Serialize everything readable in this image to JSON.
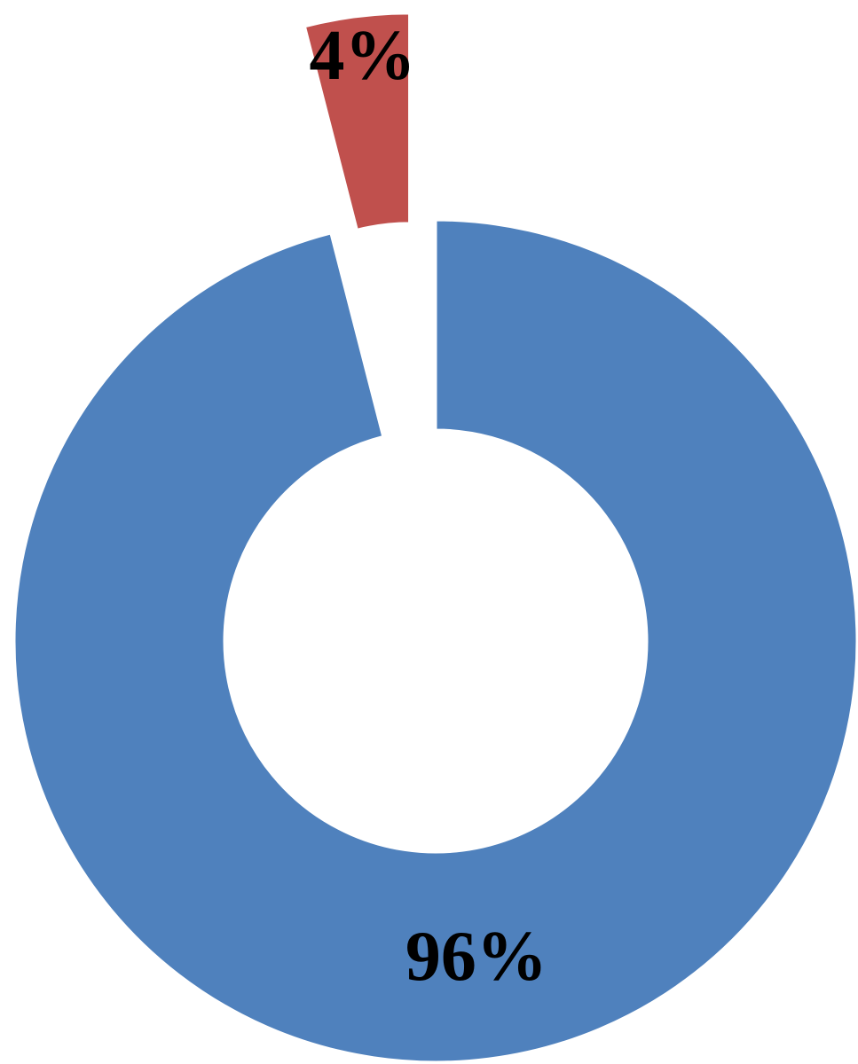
{
  "chart_data": {
    "type": "donut",
    "values": [
      96,
      4
    ],
    "value_labels": [
      "96%",
      "4%"
    ],
    "colors": [
      "#4f81bd",
      "#c0504d"
    ]
  }
}
